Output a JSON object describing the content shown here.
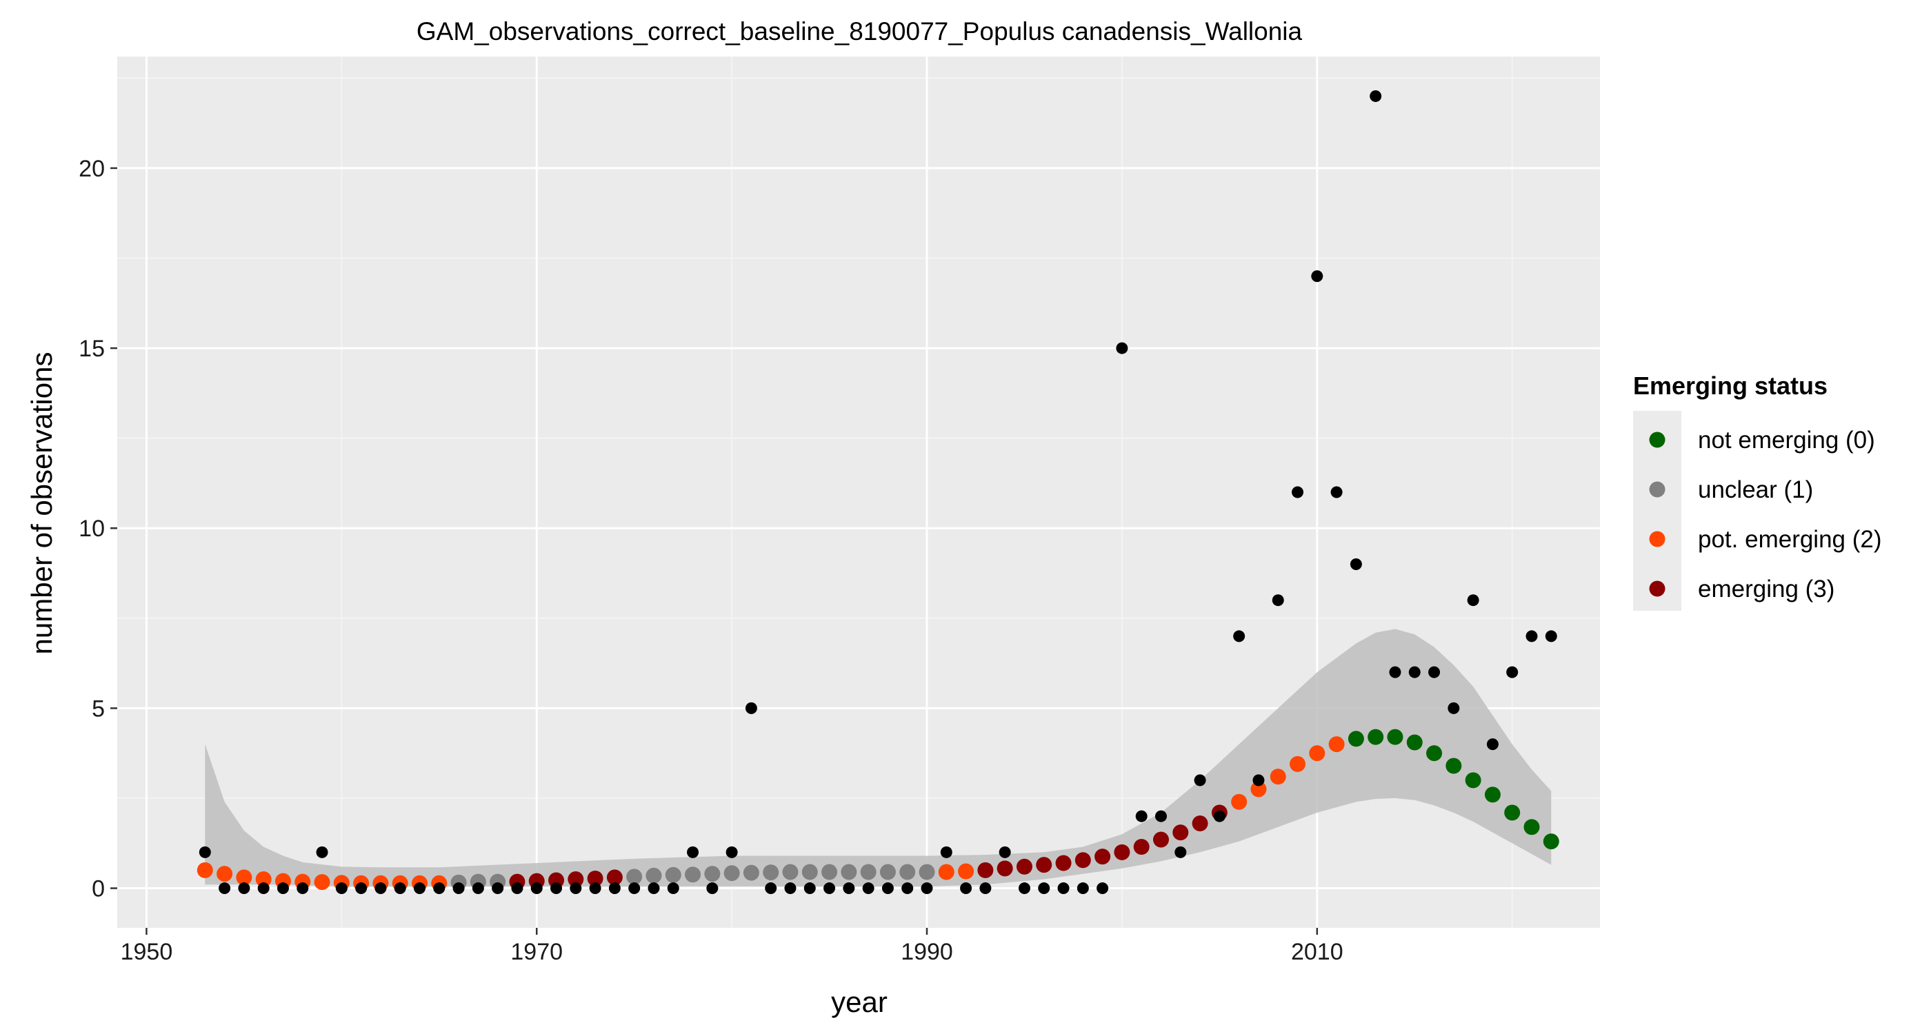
{
  "chart_data": {
    "type": "scatter",
    "title": "GAM_observations_correct_baseline_8190077_Populus canadensis_Wallonia",
    "xlabel": "year",
    "ylabel": "number of observations",
    "xlim": [
      1948.5,
      2024.5
    ],
    "ylim": [
      -1.1,
      23.1
    ],
    "x_ticks": [
      1950,
      1970,
      1990,
      2010
    ],
    "y_ticks": [
      0,
      5,
      10,
      15,
      20
    ],
    "grid": true,
    "legend_position": "right",
    "legend": {
      "title": "Emerging status",
      "entries": [
        {
          "label": "not emerging (0)",
          "color": "#006400"
        },
        {
          "label": "unclear (1)",
          "color": "#808080"
        },
        {
          "label": "pot. emerging (2)",
          "color": "#FF4500"
        },
        {
          "label": "emerging (3)",
          "color": "#8B0000"
        }
      ]
    },
    "observations": {
      "x": [
        1953,
        1954,
        1955,
        1956,
        1957,
        1958,
        1959,
        1960,
        1961,
        1962,
        1963,
        1964,
        1965,
        1966,
        1967,
        1968,
        1969,
        1970,
        1971,
        1972,
        1973,
        1974,
        1975,
        1976,
        1977,
        1978,
        1979,
        1980,
        1981,
        1982,
        1983,
        1984,
        1985,
        1986,
        1987,
        1988,
        1989,
        1990,
        1991,
        1992,
        1993,
        1994,
        1995,
        1996,
        1997,
        1998,
        1999,
        2000,
        2001,
        2002,
        2003,
        2004,
        2005,
        2006,
        2007,
        2008,
        2009,
        2010,
        2011,
        2012,
        2013,
        2014,
        2015,
        2016,
        2017,
        2018,
        2019,
        2020,
        2021,
        2022
      ],
      "y": [
        1,
        0,
        0,
        0,
        0,
        0,
        1,
        0,
        0,
        0,
        0,
        0,
        0,
        0,
        0,
        0,
        0,
        0,
        0,
        0,
        0,
        0,
        0,
        0,
        0,
        1,
        0,
        1,
        5,
        0,
        0,
        0,
        0,
        0,
        0,
        0,
        0,
        0,
        1,
        0,
        0,
        1,
        0,
        0,
        0,
        0,
        0,
        15,
        2,
        2,
        1,
        3,
        2,
        7,
        3,
        8,
        11,
        17,
        11,
        9,
        22,
        6,
        6,
        6,
        5,
        8,
        4,
        6,
        7,
        7
      ],
      "color": "#000000"
    },
    "fit": {
      "x": [
        1953,
        1954,
        1955,
        1956,
        1957,
        1958,
        1959,
        1960,
        1961,
        1962,
        1963,
        1964,
        1965,
        1966,
        1967,
        1968,
        1969,
        1970,
        1971,
        1972,
        1973,
        1974,
        1975,
        1976,
        1977,
        1978,
        1979,
        1980,
        1981,
        1982,
        1983,
        1984,
        1985,
        1986,
        1987,
        1988,
        1989,
        1990,
        1991,
        1992,
        1993,
        1994,
        1995,
        1996,
        1997,
        1998,
        1999,
        2000,
        2001,
        2002,
        2003,
        2004,
        2005,
        2006,
        2007,
        2008,
        2009,
        2010,
        2011,
        2012,
        2013,
        2014,
        2015,
        2016,
        2017,
        2018,
        2019,
        2020,
        2021,
        2022
      ],
      "y": [
        0.5,
        0.4,
        0.3,
        0.25,
        0.2,
        0.18,
        0.17,
        0.15,
        0.14,
        0.14,
        0.14,
        0.14,
        0.14,
        0.16,
        0.18,
        0.18,
        0.18,
        0.2,
        0.22,
        0.25,
        0.27,
        0.3,
        0.32,
        0.35,
        0.37,
        0.38,
        0.4,
        0.42,
        0.43,
        0.44,
        0.45,
        0.45,
        0.45,
        0.45,
        0.45,
        0.45,
        0.45,
        0.45,
        0.45,
        0.47,
        0.5,
        0.55,
        0.6,
        0.65,
        0.7,
        0.78,
        0.88,
        1.0,
        1.15,
        1.35,
        1.55,
        1.8,
        2.1,
        2.4,
        2.75,
        3.1,
        3.45,
        3.75,
        4.0,
        4.15,
        4.2,
        4.2,
        4.05,
        3.75,
        3.4,
        3.0,
        2.6,
        2.1,
        1.7,
        1.3
      ],
      "status": [
        2,
        2,
        2,
        2,
        2,
        2,
        2,
        2,
        2,
        2,
        2,
        2,
        2,
        1,
        1,
        1,
        3,
        3,
        3,
        3,
        3,
        3,
        1,
        1,
        1,
        1,
        1,
        1,
        1,
        1,
        1,
        1,
        1,
        1,
        1,
        1,
        1,
        1,
        2,
        2,
        3,
        3,
        3,
        3,
        3,
        3,
        3,
        3,
        3,
        3,
        3,
        3,
        3,
        2,
        2,
        2,
        2,
        2,
        2,
        0,
        0,
        0,
        0,
        0,
        0,
        0,
        0,
        0,
        0,
        0
      ]
    },
    "confidence_band": {
      "x": [
        1953,
        1954,
        1955,
        1956,
        1957,
        1958,
        1960,
        1962,
        1965,
        1970,
        1975,
        1980,
        1985,
        1990,
        1993,
        1996,
        1998,
        2000,
        2002,
        2004,
        2006,
        2008,
        2010,
        2012,
        2013,
        2014,
        2015,
        2016,
        2017,
        2018,
        2019,
        2020,
        2021,
        2022
      ],
      "lower": [
        0.1,
        0.1,
        0.1,
        0.1,
        0.1,
        0.08,
        0.05,
        0.05,
        0.05,
        0.05,
        0.05,
        0.05,
        0.05,
        0.05,
        0.1,
        0.25,
        0.4,
        0.55,
        0.75,
        1.0,
        1.3,
        1.7,
        2.1,
        2.4,
        2.48,
        2.5,
        2.45,
        2.3,
        2.1,
        1.85,
        1.55,
        1.25,
        0.95,
        0.65
      ],
      "upper": [
        4.0,
        2.4,
        1.6,
        1.15,
        0.9,
        0.72,
        0.6,
        0.58,
        0.58,
        0.7,
        0.82,
        0.9,
        0.9,
        0.9,
        0.93,
        1.0,
        1.15,
        1.5,
        2.1,
        3.0,
        4.0,
        5.0,
        6.0,
        6.8,
        7.1,
        7.2,
        7.05,
        6.7,
        6.2,
        5.6,
        4.8,
        4.0,
        3.3,
        2.7
      ],
      "color": "#bebebe"
    }
  }
}
